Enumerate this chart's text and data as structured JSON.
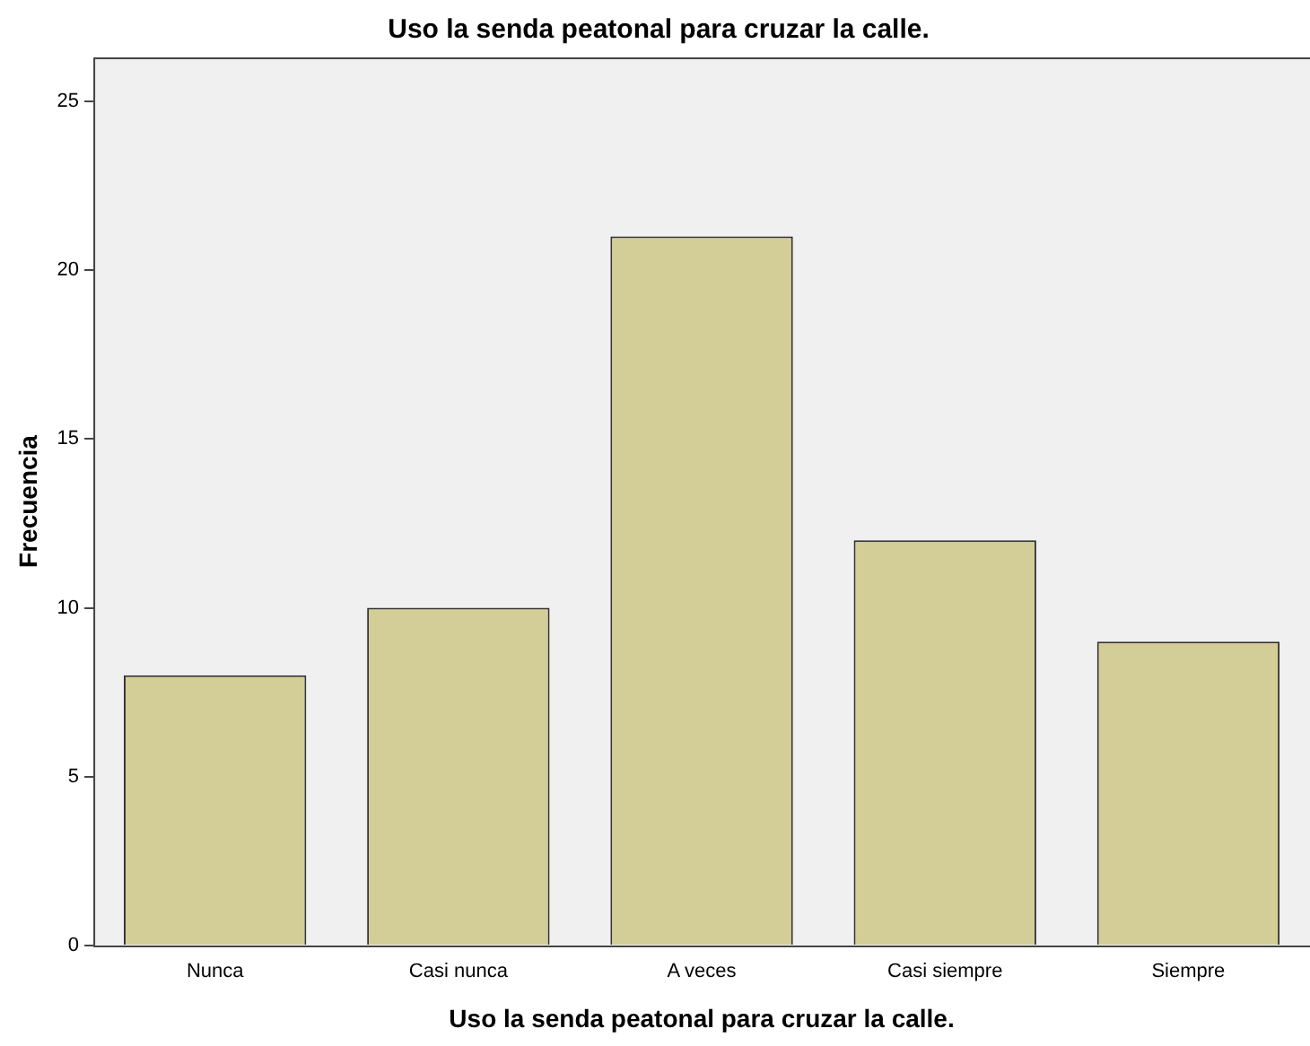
{
  "chart_data": {
    "type": "bar",
    "title": "Uso la senda peatonal para cruzar la calle.",
    "xlabel": "Uso la senda peatonal para cruzar la calle.",
    "ylabel": "Frecuencia",
    "categories": [
      "Nunca",
      "Casi nunca",
      "A veces",
      "Casi siempre",
      "Siempre"
    ],
    "values": [
      8,
      10,
      21,
      12,
      9
    ],
    "color": "#d3ce97",
    "ylim": [
      0,
      26.3
    ],
    "yticks": [
      0,
      5,
      10,
      15,
      20,
      25
    ],
    "grid": false,
    "legend": false
  }
}
